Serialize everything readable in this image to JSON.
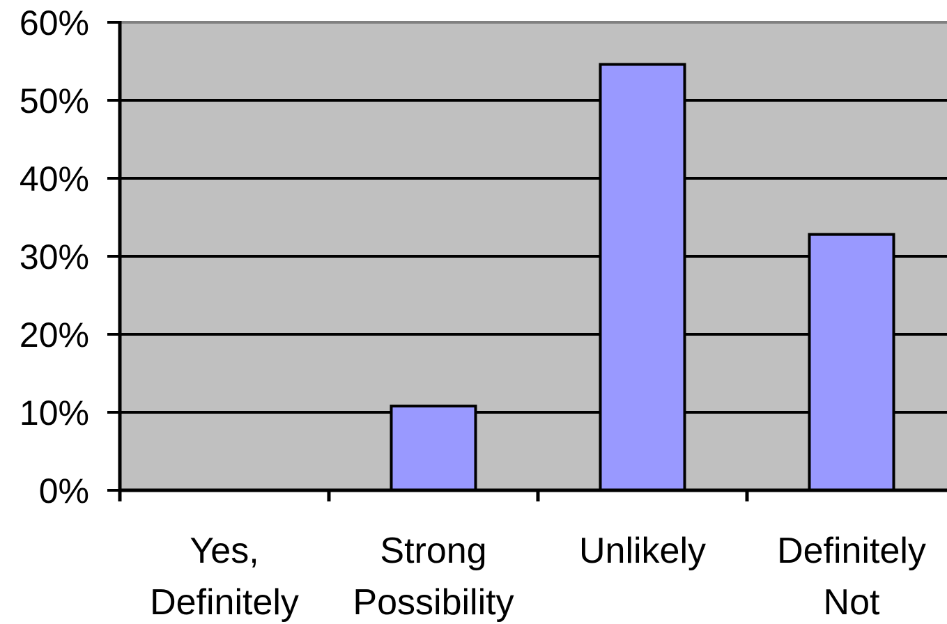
{
  "chart_data": {
    "type": "bar",
    "title": "",
    "xlabel": "",
    "ylabel": "",
    "categories": [
      [
        "Yes,",
        "Definitely"
      ],
      [
        "Strong",
        "Possibility"
      ],
      [
        "Unlikely"
      ],
      [
        "Definitely",
        "Not"
      ]
    ],
    "values": [
      0,
      10.8,
      54.6,
      32.8
    ],
    "ylim": [
      0,
      60
    ],
    "yticks": [
      "0%",
      "10%",
      "20%",
      "30%",
      "40%",
      "50%",
      "60%"
    ],
    "grid": true,
    "colors": {
      "plot_background": "#c0c0c0",
      "bar_fill": "#9999ff",
      "bar_stroke": "#000000",
      "gridline": "#000000",
      "top_border": "#808080"
    }
  }
}
